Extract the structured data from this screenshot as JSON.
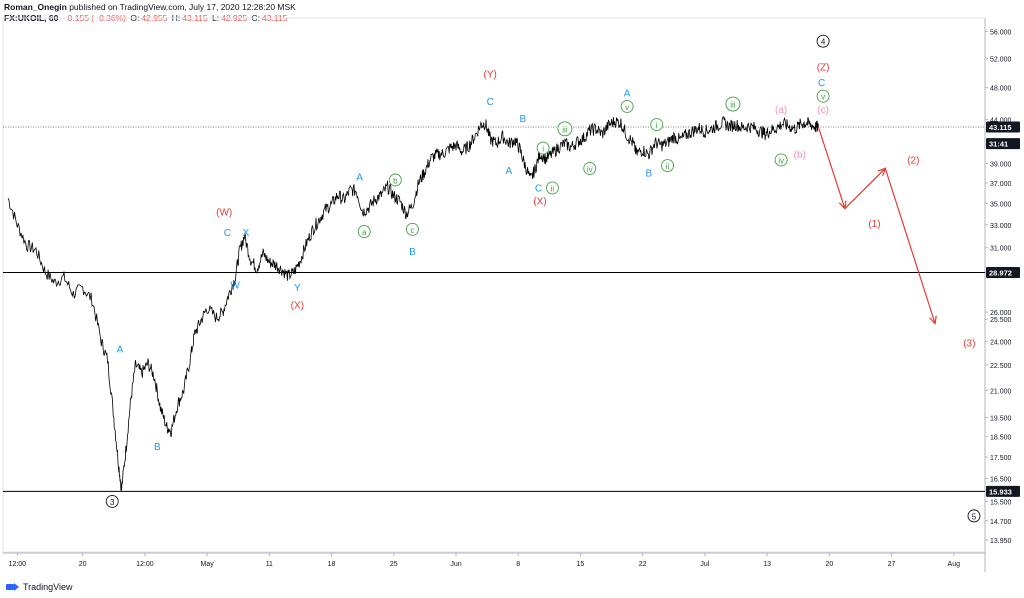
{
  "header": {
    "author": "Roman_Onegin",
    "published": "published on TradingView.com, July 17, 2020 12:28:20 MSK",
    "symbol": "FX:UKOIL, 60",
    "change": "−0.155 (−0.36%)",
    "o_label": "O:",
    "o_value": "42.955",
    "h_label": "H:",
    "h_value": "43.115",
    "l_label": "L:",
    "l_value": "42.925",
    "c_label": "C:",
    "c_value": "43.115"
  },
  "footer": {
    "brand": "TradingView"
  },
  "colors": {
    "price": "#000000",
    "blue": "#2196f3",
    "red": "#e53935",
    "green": "#43a047",
    "pink": "#f48fb1",
    "black": "#131722",
    "grid": "#e0e3eb",
    "level": "#000000"
  },
  "chart_data": {
    "type": "line",
    "symbol": "FX:UKOIL",
    "interval": "60",
    "ylim": [
      13.5,
      56.5
    ],
    "y_scale": "log",
    "y_ticks": [
      "56.000",
      "52.000",
      "48.000",
      "44.000",
      "41.000",
      "39.000",
      "37.000",
      "35.000",
      "33.000",
      "31.000",
      "29.000",
      "26.000",
      "25.500",
      "24.000",
      "22.500",
      "21.000",
      "19.500",
      "18.500",
      "17.500",
      "16.500",
      "15.500",
      "14.700",
      "13.950"
    ],
    "x_ticks": [
      "12:00",
      "20",
      "12:00",
      "May",
      "11",
      "18",
      "25",
      "Jun",
      "8",
      "15",
      "22",
      "Jul",
      "13",
      "20",
      "27",
      "Aug"
    ],
    "price_labels": [
      {
        "text": "43.115",
        "value": 43.115,
        "style": "dark"
      },
      {
        "text": "31:41",
        "value": 41.2,
        "style": "dark"
      },
      {
        "text": "28.972",
        "value": 28.972,
        "style": "dark"
      },
      {
        "text": "15.933",
        "value": 15.933,
        "style": "dark"
      }
    ],
    "horizontal_levels": [
      28.972,
      15.933
    ],
    "current_price": 43.115,
    "series": [
      {
        "values": [
          [
            0.0,
            35.5
          ],
          [
            0.3,
            33.0
          ],
          [
            0.6,
            31.2
          ],
          [
            0.9,
            30.8
          ],
          [
            1.2,
            29.0
          ],
          [
            1.5,
            28.2
          ],
          [
            1.8,
            28.6
          ],
          [
            2.1,
            27.3
          ],
          [
            2.4,
            27.8
          ],
          [
            2.7,
            26.9
          ],
          [
            3.0,
            24.0
          ],
          [
            3.2,
            22.8
          ],
          [
            3.4,
            19.5
          ],
          [
            3.55,
            17.2
          ],
          [
            3.65,
            16.0
          ],
          [
            3.8,
            18.0
          ],
          [
            3.95,
            20.5
          ],
          [
            4.1,
            22.5
          ],
          [
            4.3,
            22.0
          ],
          [
            4.5,
            22.6
          ],
          [
            4.7,
            21.8
          ],
          [
            4.9,
            20.0
          ],
          [
            5.1,
            19.0
          ],
          [
            5.25,
            18.8
          ],
          [
            5.45,
            20.2
          ],
          [
            5.65,
            21.0
          ],
          [
            5.85,
            22.8
          ],
          [
            6.0,
            24.5
          ],
          [
            6.2,
            25.4
          ],
          [
            6.4,
            26.3
          ],
          [
            6.7,
            25.6
          ],
          [
            6.9,
            26.0
          ],
          [
            7.1,
            27.3
          ],
          [
            7.3,
            28.5
          ],
          [
            7.45,
            30.8
          ],
          [
            7.6,
            32.0
          ],
          [
            7.8,
            30.0
          ],
          [
            8.0,
            29.3
          ],
          [
            8.2,
            30.5
          ],
          [
            8.4,
            29.8
          ],
          [
            8.6,
            29.6
          ],
          [
            8.8,
            29.2
          ],
          [
            9.0,
            28.7
          ],
          [
            9.2,
            29.0
          ],
          [
            9.4,
            30.0
          ],
          [
            9.6,
            31.4
          ],
          [
            9.8,
            32.6
          ],
          [
            10.0,
            33.5
          ],
          [
            10.2,
            34.4
          ],
          [
            10.4,
            34.9
          ],
          [
            10.6,
            35.8
          ],
          [
            10.8,
            35.3
          ],
          [
            11.0,
            36.3
          ],
          [
            11.2,
            36.2
          ],
          [
            11.4,
            34.2
          ],
          [
            11.6,
            34.6
          ],
          [
            11.8,
            35.4
          ],
          [
            12.0,
            35.8
          ],
          [
            12.2,
            36.6
          ],
          [
            12.4,
            35.7
          ],
          [
            12.6,
            35.2
          ],
          [
            12.8,
            34.0
          ],
          [
            13.0,
            34.8
          ],
          [
            13.2,
            37.0
          ],
          [
            13.4,
            38.2
          ],
          [
            13.6,
            39.6
          ],
          [
            13.8,
            40.0
          ],
          [
            14.0,
            40.1
          ],
          [
            14.2,
            40.7
          ],
          [
            14.4,
            41.0
          ],
          [
            14.6,
            40.3
          ],
          [
            14.8,
            40.9
          ],
          [
            15.0,
            42.0
          ],
          [
            15.2,
            43.4
          ],
          [
            15.35,
            43.5
          ],
          [
            15.5,
            41.7
          ],
          [
            15.7,
            41.2
          ],
          [
            15.9,
            42.0
          ],
          [
            16.1,
            41.2
          ],
          [
            16.3,
            41.6
          ],
          [
            16.45,
            40.6
          ],
          [
            16.6,
            39.0
          ],
          [
            16.8,
            37.3
          ],
          [
            16.95,
            38.5
          ],
          [
            17.1,
            40.1
          ],
          [
            17.3,
            39.5
          ],
          [
            17.5,
            40.1
          ],
          [
            17.7,
            40.8
          ],
          [
            17.9,
            41.2
          ],
          [
            18.1,
            40.8
          ],
          [
            18.3,
            41.4
          ],
          [
            18.5,
            41.8
          ],
          [
            18.7,
            42.7
          ],
          [
            18.9,
            42.9
          ],
          [
            19.1,
            42.3
          ],
          [
            19.3,
            43.3
          ],
          [
            19.5,
            43.8
          ],
          [
            19.7,
            43.6
          ],
          [
            19.9,
            42.1
          ],
          [
            20.1,
            41.2
          ],
          [
            20.2,
            40.1
          ],
          [
            20.4,
            40.5
          ],
          [
            20.6,
            40.0
          ],
          [
            20.8,
            41.3
          ],
          [
            21.0,
            41.0
          ],
          [
            21.2,
            41.3
          ],
          [
            21.4,
            42.0
          ],
          [
            21.6,
            41.6
          ],
          [
            21.8,
            42.2
          ],
          [
            22.0,
            42.6
          ],
          [
            22.2,
            43.0
          ],
          [
            22.4,
            42.6
          ],
          [
            22.6,
            42.9
          ],
          [
            22.8,
            43.3
          ],
          [
            23.0,
            43.6
          ],
          [
            23.2,
            43.2
          ],
          [
            23.4,
            43.4
          ],
          [
            23.6,
            43.0
          ],
          [
            23.8,
            43.2
          ],
          [
            24.0,
            43.0
          ],
          [
            24.2,
            42.6
          ],
          [
            24.35,
            42.3
          ],
          [
            24.5,
            42.7
          ],
          [
            24.7,
            43.0
          ],
          [
            24.9,
            43.5
          ],
          [
            25.1,
            43.2
          ],
          [
            25.3,
            42.9
          ],
          [
            25.5,
            43.5
          ],
          [
            25.65,
            43.6
          ],
          [
            25.8,
            43.4
          ],
          [
            25.95,
            43.1
          ],
          [
            26.05,
            43.115
          ]
        ]
      }
    ],
    "projection": [
      [
        26.05,
        43.115
      ],
      [
        26.9,
        34.5
      ],
      [
        28.2,
        38.5
      ],
      [
        29.8,
        25.2
      ]
    ],
    "x_domain": [
      0,
      30.6
    ],
    "annotations": [
      {
        "text": "A",
        "x": 3.6,
        "y": 23.5,
        "color": "blue"
      },
      {
        "text": "B",
        "x": 4.8,
        "y": 18.0,
        "color": "blue"
      },
      {
        "text": "3",
        "x": 3.35,
        "y": 15.5,
        "color": "black",
        "circled": true
      },
      {
        "text": "(W)",
        "x": 6.95,
        "y": 34.2,
        "color": "red"
      },
      {
        "text": "C",
        "x": 7.05,
        "y": 32.3,
        "color": "blue"
      },
      {
        "text": "X",
        "x": 7.65,
        "y": 32.3,
        "color": "blue"
      },
      {
        "text": "W",
        "x": 7.3,
        "y": 28.0,
        "color": "blue"
      },
      {
        "text": "Y",
        "x": 9.3,
        "y": 27.8,
        "color": "blue"
      },
      {
        "text": "(X)",
        "x": 9.3,
        "y": 26.5,
        "color": "red"
      },
      {
        "text": "A",
        "x": 11.3,
        "y": 37.6,
        "color": "blue"
      },
      {
        "text": "a",
        "x": 11.45,
        "y": 32.4,
        "color": "green",
        "circled": true
      },
      {
        "text": "b",
        "x": 12.45,
        "y": 37.3,
        "color": "green",
        "circled": true
      },
      {
        "text": "c",
        "x": 13.0,
        "y": 32.6,
        "color": "green",
        "circled": true
      },
      {
        "text": "B",
        "x": 13.0,
        "y": 30.7,
        "color": "blue"
      },
      {
        "text": "(Y)",
        "x": 15.5,
        "y": 49.8,
        "color": "red"
      },
      {
        "text": "C",
        "x": 15.5,
        "y": 46.2,
        "color": "blue"
      },
      {
        "text": "B",
        "x": 16.55,
        "y": 44.1,
        "color": "blue"
      },
      {
        "text": "A",
        "x": 16.1,
        "y": 38.3,
        "color": "blue"
      },
      {
        "text": "i",
        "x": 17.2,
        "y": 40.7,
        "color": "green",
        "circled": true
      },
      {
        "text": "iii",
        "x": 17.9,
        "y": 42.9,
        "color": "green",
        "circled": true
      },
      {
        "text": "iv",
        "x": 18.7,
        "y": 38.5,
        "color": "green",
        "circled": true
      },
      {
        "text": "C",
        "x": 17.05,
        "y": 36.5,
        "color": "blue"
      },
      {
        "text": "ii",
        "x": 17.5,
        "y": 36.5,
        "color": "green",
        "circled": true
      },
      {
        "text": "(X)",
        "x": 17.1,
        "y": 35.2,
        "color": "red"
      },
      {
        "text": "A",
        "x": 19.9,
        "y": 47.3,
        "color": "blue"
      },
      {
        "text": "v",
        "x": 19.9,
        "y": 45.6,
        "color": "green",
        "circled": true
      },
      {
        "text": "i",
        "x": 20.85,
        "y": 43.4,
        "color": "green",
        "circled": true
      },
      {
        "text": "ii",
        "x": 21.2,
        "y": 38.8,
        "color": "green",
        "circled": true
      },
      {
        "text": "B",
        "x": 20.6,
        "y": 38.0,
        "color": "blue"
      },
      {
        "text": "iii",
        "x": 23.3,
        "y": 45.9,
        "color": "green",
        "circled": true
      },
      {
        "text": "(a)",
        "x": 24.85,
        "y": 45.2,
        "color": "pink"
      },
      {
        "text": "(b)",
        "x": 25.45,
        "y": 40.0,
        "color": "pink"
      },
      {
        "text": "iv",
        "x": 24.85,
        "y": 39.4,
        "color": "green",
        "circled": true
      },
      {
        "text": "4",
        "x": 26.2,
        "y": 54.5,
        "color": "black",
        "circled": true
      },
      {
        "text": "(Z)",
        "x": 26.2,
        "y": 50.8,
        "color": "red"
      },
      {
        "text": "C",
        "x": 26.15,
        "y": 48.7,
        "color": "blue"
      },
      {
        "text": "v",
        "x": 26.2,
        "y": 46.9,
        "color": "green",
        "circled": true
      },
      {
        "text": "(c)",
        "x": 26.2,
        "y": 45.2,
        "color": "pink"
      },
      {
        "text": "(1)",
        "x": 27.85,
        "y": 33.1,
        "color": "red"
      },
      {
        "text": "(2)",
        "x": 29.1,
        "y": 39.4,
        "color": "red"
      },
      {
        "text": "(3)",
        "x": 30.9,
        "y": 23.9,
        "color": "red"
      },
      {
        "text": "5",
        "x": 31.05,
        "y": 14.9,
        "color": "black",
        "circled": true
      }
    ]
  }
}
